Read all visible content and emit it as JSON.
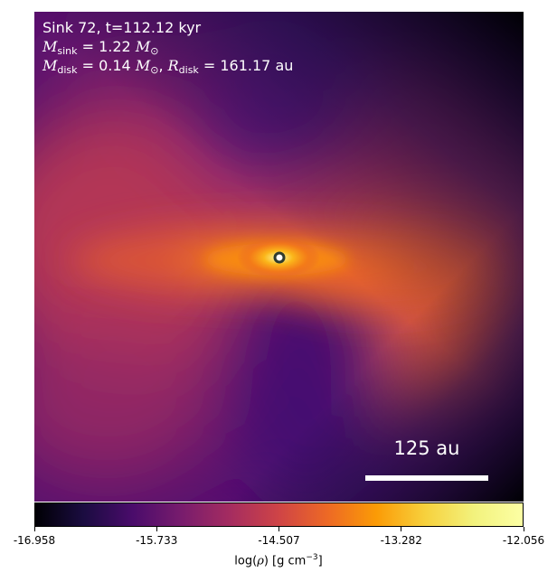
{
  "annotation": {
    "line1": "Sink 72, t=112.12 kyr",
    "sink_mass_value": "1.22",
    "disk_mass_value": "0.14",
    "disk_radius_value": "161.17",
    "unit_au": "au"
  },
  "scale_bar": {
    "label": "125 au",
    "length_au": 125
  },
  "colorbar": {
    "ticks": [
      "-16.958",
      "-15.733",
      "-14.507",
      "-13.282",
      "-12.056"
    ],
    "label_prefix": "log(",
    "label_suffix": ") [g cm",
    "label_exp": "−3",
    "label_end": "]",
    "colormap": "inferno"
  },
  "colors": {
    "background_dark": "#000004",
    "mid_purple": "#6b186e",
    "orange": "#ed6925",
    "bright_yellow": "#fcffa4",
    "sink_marker": "#2e3b2e"
  }
}
